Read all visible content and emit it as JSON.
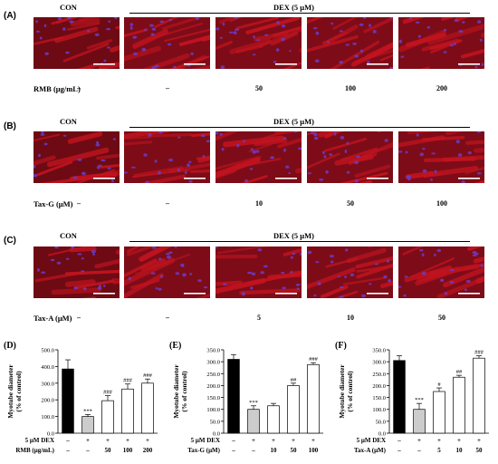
{
  "panels": {
    "A": {
      "label": "(A)",
      "con": "CON",
      "dex": "DEX (5 μM)",
      "treat_label": "RMB (μg/mL)",
      "doses": [
        "–",
        "–",
        "50",
        "100",
        "200"
      ]
    },
    "B": {
      "label": "(B)",
      "con": "CON",
      "dex": "DEX (5 μM)",
      "treat_label": "Tax-G (μM)",
      "doses": [
        "–",
        "–",
        "10",
        "50",
        "100"
      ]
    },
    "C": {
      "label": "(C)",
      "con": "CON",
      "dex": "DEX (5 μM)",
      "treat_label": "Tax-A (μM)",
      "doses": [
        "–",
        "–",
        "5",
        "10",
        "50"
      ]
    }
  },
  "colors": {
    "stain_red": "#c3141f",
    "nuclei": "#6a3cc8",
    "bar_black": "#000000",
    "bar_gray": "#cccccc",
    "bar_white": "#ffffff"
  },
  "chart_data": [
    {
      "type": "bar",
      "panel": "(D)",
      "ylabel": "Myotube diameter\n(% of control)",
      "ylim": [
        0,
        500
      ],
      "yticks": [
        "0.0",
        "100.0",
        "200.0",
        "300.0",
        "400.0",
        "500.0"
      ],
      "row1_label": "5 μM DEX",
      "row1": [
        "–",
        "+",
        "+",
        "+",
        "+"
      ],
      "row2_label": "RMB (μg/mL)",
      "row2": [
        "–",
        "–",
        "50",
        "100",
        "200"
      ],
      "values": [
        385,
        100,
        195,
        265,
        300
      ],
      "errors": [
        55,
        12,
        30,
        30,
        25
      ],
      "marks": [
        "",
        "***",
        "###",
        "###",
        "###"
      ]
    },
    {
      "type": "bar",
      "panel": "(E)",
      "ylabel": "Myotube diameter\n(% of control)",
      "ylim": [
        0,
        350
      ],
      "yticks": [
        "0.0",
        "50.0",
        "100.0",
        "150.0",
        "200.0",
        "250.0",
        "300.0",
        "350.0"
      ],
      "row1_label": "5 μM DEX",
      "row1": [
        "–",
        "+",
        "+",
        "+",
        "+"
      ],
      "row2_label": "Tax-G (μM)",
      "row2": [
        "–",
        "–",
        "10",
        "50",
        "100"
      ],
      "values": [
        310,
        100,
        115,
        200,
        288
      ],
      "errors": [
        20,
        15,
        10,
        10,
        8
      ],
      "marks": [
        "",
        "***",
        "",
        "##",
        "###"
      ]
    },
    {
      "type": "bar",
      "panel": "(F)",
      "ylabel": "Myotube diameter\n(% of control)",
      "ylim": [
        0,
        350
      ],
      "yticks": [
        "0.0",
        "50.0",
        "100.0",
        "150.0",
        "200.0",
        "250.0",
        "300.0",
        "350.0"
      ],
      "row1_label": "5 μM DEX",
      "row1": [
        "–",
        "+",
        "+",
        "+",
        "+"
      ],
      "row2_label": "Tax-A (μM)",
      "row2": [
        "–",
        "–",
        "5",
        "10",
        "50"
      ],
      "values": [
        305,
        100,
        175,
        235,
        315
      ],
      "errors": [
        20,
        25,
        15,
        8,
        10
      ],
      "marks": [
        "",
        "***",
        "#",
        "##",
        "###"
      ]
    }
  ]
}
